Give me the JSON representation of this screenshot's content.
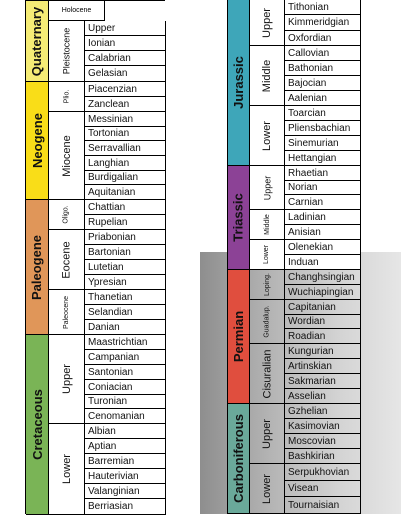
{
  "colors": {
    "quaternary": "#f5ec76",
    "neogene": "#f9dd18",
    "paleogene": "#e09659",
    "cretaceous": "#7ab456",
    "jurassic": "#3ea6b9",
    "triassic": "#8c4296",
    "permian": "#e04e3e",
    "carboniferous": "#6aa99a"
  },
  "left": {
    "periods": [
      "Quaternary",
      "Neogene",
      "Paleogene",
      "Cretaceous"
    ],
    "holocene": "Holocene",
    "epochs": {
      "pleistocene": "Pleistocene",
      "plio": "Plio.",
      "miocene": "Miocene",
      "oligo": "Oligo.",
      "eocene": "Eocene",
      "paleocene": "Paleocene",
      "cret_upper": "Upper",
      "cret_lower": "Lower"
    },
    "stages": [
      "Upper",
      "Ionian",
      "Calabrian",
      "Gelasian",
      "Piacenzian",
      "Zanclean",
      "Messinian",
      "Tortonian",
      "Serravallian",
      "Langhian",
      "Burdigalian",
      "Aquitanian",
      "Chattian",
      "Rupelian",
      "Priabonian",
      "Bartonian",
      "Lutetian",
      "Ypresian",
      "Thanetian",
      "Selandian",
      "Danian",
      "Maastrichtian",
      "Campanian",
      "Santonian",
      "Coniacian",
      "Turonian",
      "Cenomanian",
      "Albian",
      "Aptian",
      "Barremian",
      "Hauterivian",
      "Valanginian",
      "Berriasian"
    ]
  },
  "right": {
    "periods": [
      "Jurassic",
      "Triassic",
      "Permian",
      "Carboniferous"
    ],
    "epochs": {
      "jur_upper": "Upper",
      "jur_middle": "Middle",
      "jur_lower": "Lower",
      "tri_upper": "Upper",
      "tri_middle": "Middle",
      "tri_lower": "Lower",
      "lopingian": "Loping.",
      "guadalupian": "Guadalup.",
      "cisuralian": "Cisuralian",
      "carb_upper": "Upper",
      "carb_lower": "Lower"
    },
    "stages": [
      "Tithonian",
      "Kimmeridgian",
      "Oxfordian",
      "Callovian",
      "Bathonian",
      "Bajocian",
      "Aalenian",
      "Toarcian",
      "Pliensbachian",
      "Sinemurian",
      "Hettangian",
      "Rhaetian",
      "Norian",
      "Carnian",
      "Ladinian",
      "Anisian",
      "Olenekian",
      "Induan",
      "Changhsingian",
      "Wuchiapingian",
      "Capitanian",
      "Wordian",
      "Roadian",
      "Kungurian",
      "Artinskian",
      "Sakmarian",
      "Asselian",
      "Gzhelian",
      "Kasimovian",
      "Moscovian",
      "Bashkirian",
      "Serpukhovian",
      "Visean",
      "Tournaisian"
    ]
  }
}
